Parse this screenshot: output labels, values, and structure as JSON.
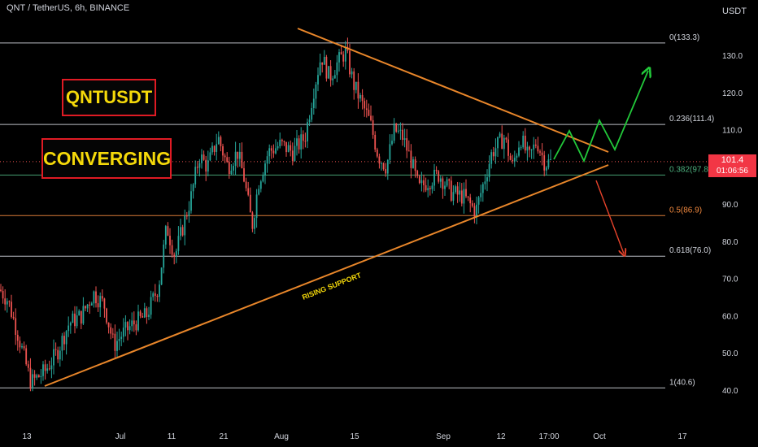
{
  "header": {
    "title": "QNT / TetherUS, 6h, BINANCE"
  },
  "axis_unit": "USDT",
  "annotations": {
    "box1": "QNTUSDT",
    "box2": "CONVERGING",
    "support_label": "RISING SUPPORT"
  },
  "price_tag": {
    "price": "101.4",
    "countdown": "01:06:56",
    "color": "#f23645"
  },
  "colors": {
    "background": "#000000",
    "up": "#26a69a",
    "down": "#ef5350",
    "trendline": "#e8862a",
    "fib_white": "#d1d4dc",
    "fib_382": "#4caf7d",
    "fib_05": "#f0883e",
    "projection_up": "#22c93a",
    "projection_down": "#e8432b"
  },
  "chart_data": {
    "type": "candlestick",
    "symbol": "QNT / TetherUS",
    "interval": "6h",
    "exchange": "BINANCE",
    "y_unit": "USDT",
    "ylim": [
      35,
      148
    ],
    "y_ticks": [
      "130.0",
      "120.0",
      "110.0",
      "90.0",
      "80.0",
      "70.0",
      "60.0",
      "50.0",
      "40.0"
    ],
    "x_ticks": [
      "13",
      "Jul",
      "11",
      "21",
      "Aug",
      "15",
      "Sep",
      "12",
      "17:00",
      "Oct",
      "17"
    ],
    "fib_levels": [
      {
        "label": "0(133.3)",
        "value": 133.3
      },
      {
        "label": "0.236(111.4)",
        "value": 111.4
      },
      {
        "label": "0.382(97.8)",
        "value": 97.8
      },
      {
        "label": "0.5(86.9)",
        "value": 86.9
      },
      {
        "label": "0.618(76.0)",
        "value": 76.0
      },
      {
        "label": "1(40.6)",
        "value": 40.6
      }
    ],
    "last_price": 101.4,
    "price_path": [
      [
        0,
        67
      ],
      [
        10,
        64
      ],
      [
        22,
        55
      ],
      [
        38,
        42
      ],
      [
        55,
        45
      ],
      [
        70,
        50
      ],
      [
        85,
        58
      ],
      [
        100,
        60
      ],
      [
        115,
        66
      ],
      [
        128,
        63
      ],
      [
        140,
        52
      ],
      [
        150,
        55
      ],
      [
        165,
        58
      ],
      [
        180,
        60
      ],
      [
        195,
        68
      ],
      [
        205,
        84
      ],
      [
        215,
        76
      ],
      [
        225,
        84
      ],
      [
        235,
        92
      ],
      [
        245,
        103
      ],
      [
        255,
        100
      ],
      [
        268,
        108
      ],
      [
        280,
        100
      ],
      [
        292,
        104
      ],
      [
        300,
        97
      ],
      [
        310,
        84
      ],
      [
        318,
        96
      ],
      [
        330,
        104
      ],
      [
        345,
        106
      ],
      [
        360,
        104
      ],
      [
        375,
        108
      ],
      [
        385,
        120
      ],
      [
        395,
        130
      ],
      [
        405,
        124
      ],
      [
        415,
        128
      ],
      [
        425,
        131
      ],
      [
        435,
        122
      ],
      [
        445,
        117
      ],
      [
        455,
        112
      ],
      [
        465,
        103
      ],
      [
        475,
        100
      ],
      [
        485,
        110
      ],
      [
        495,
        108
      ],
      [
        505,
        102
      ],
      [
        515,
        94
      ],
      [
        525,
        96
      ],
      [
        540,
        98
      ],
      [
        555,
        93
      ],
      [
        570,
        92
      ],
      [
        585,
        88
      ],
      [
        595,
        96
      ],
      [
        605,
        104
      ],
      [
        620,
        108
      ],
      [
        630,
        100
      ],
      [
        640,
        108
      ],
      [
        650,
        102
      ],
      [
        660,
        107
      ],
      [
        670,
        101
      ],
      [
        678,
        101.4
      ]
    ]
  }
}
